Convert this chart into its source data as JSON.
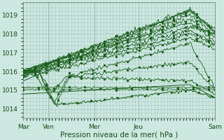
{
  "xlabel": "Pression niveau de la mer( hPa )",
  "bg_color": "#cce8e0",
  "plot_bg_color": "#cce8e0",
  "grid_color": "#a8c8c0",
  "line_color": "#1a5c1a",
  "ylim": [
    1013.5,
    1019.7
  ],
  "yticks": [
    1014,
    1015,
    1016,
    1017,
    1018,
    1019
  ],
  "xtick_labels": [
    "Mar",
    "Ven",
    "Mer",
    "Jeu",
    "Sam"
  ],
  "xtick_positions": [
    0.0,
    0.13,
    0.37,
    0.6,
    1.0
  ]
}
